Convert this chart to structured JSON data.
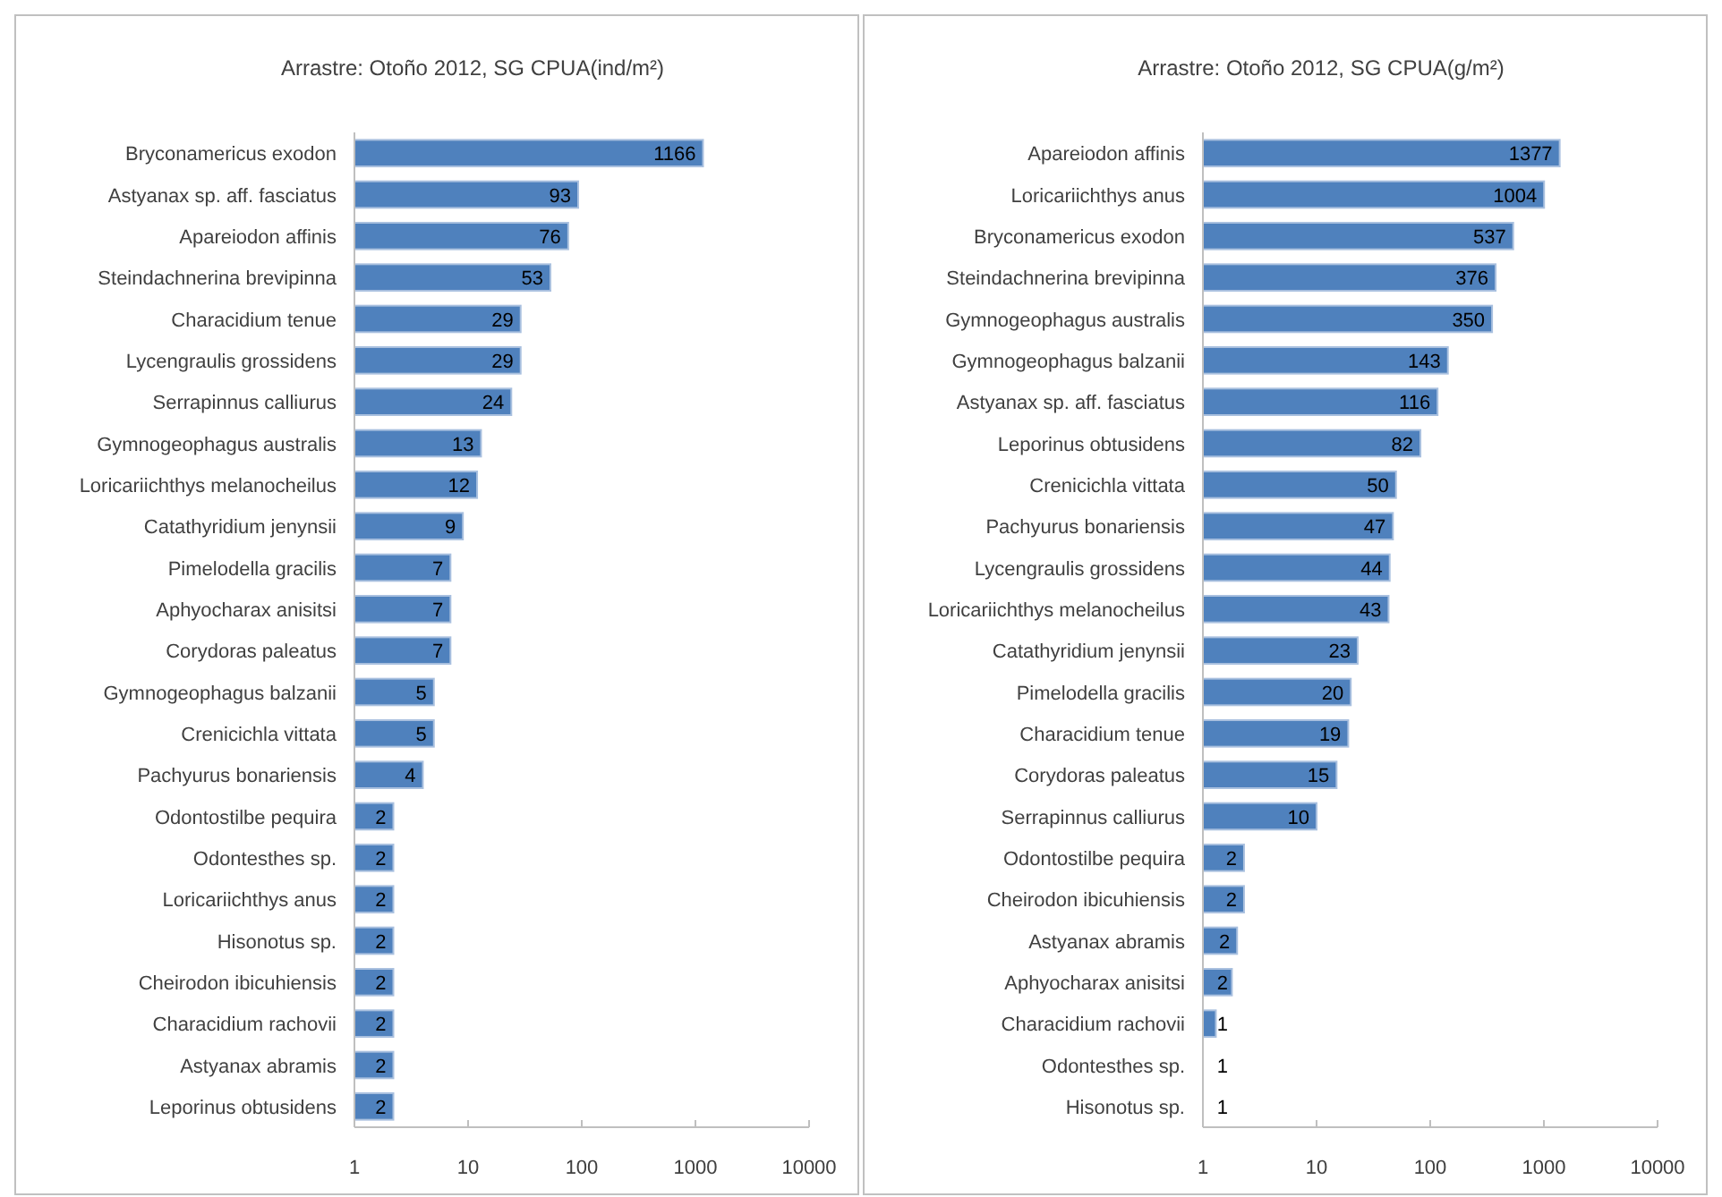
{
  "chart_data": [
    {
      "type": "bar",
      "orientation": "horizontal",
      "log": "x",
      "title": "Arrastre:  Otoño 2012, SG    CPUA(ind/m²)",
      "color": "#4f81bd",
      "xlim": [
        1,
        10000
      ],
      "xticks": [
        1,
        10,
        100,
        1000,
        10000
      ],
      "categories": [
        "Bryconamericus exodon",
        "Astyanax sp. aff.  fasciatus",
        "Apareiodon affinis",
        "Steindachnerina brevipinna",
        "Characidium tenue",
        "Lycengraulis grossidens",
        "Serrapinnus calliurus",
        "Gymnogeophagus australis",
        "Loricariichthys melanocheilus",
        "Catathyridium jenynsii",
        "Pimelodella gracilis",
        "Aphyocharax anisitsi",
        "Corydoras paleatus",
        "Gymnogeophagus balzanii",
        "Crenicichla vittata",
        "Pachyurus bonariensis",
        "Odontostilbe pequira",
        "Odontesthes sp.",
        "Loricariichthys anus",
        "Hisonotus sp.",
        "Cheirodon ibicuhiensis",
        "Characidium rachovii",
        "Astyanax abramis",
        "Leporinus obtusidens"
      ],
      "values": [
        1166,
        93,
        76,
        53,
        29,
        29,
        24,
        13,
        12,
        9,
        7,
        7,
        7,
        5,
        5,
        4,
        2.2,
        2.2,
        2.2,
        2.2,
        2.2,
        2.2,
        2.2,
        2.2
      ],
      "value_labels": [
        "1166",
        "93",
        "76",
        "53",
        "29",
        "29",
        "24",
        "13",
        "12",
        "9",
        "7",
        "7",
        "7",
        "5",
        "5",
        "4",
        "2",
        "2",
        "2",
        "2",
        "2",
        "2",
        "2",
        "2"
      ]
    },
    {
      "type": "bar",
      "orientation": "horizontal",
      "log": "x",
      "title": "Arrastre:  Otoño 2012, SG    CPUA(g/m²)",
      "color": "#4f81bd",
      "xlim": [
        1,
        10000
      ],
      "xticks": [
        1,
        10,
        100,
        1000,
        10000
      ],
      "categories": [
        "Apareiodon affinis",
        "Loricariichthys anus",
        "Bryconamericus exodon",
        "Steindachnerina brevipinna",
        "Gymnogeophagus australis",
        "Gymnogeophagus balzanii",
        "Astyanax sp. aff.  fasciatus",
        "Leporinus obtusidens",
        "Crenicichla vittata",
        "Pachyurus bonariensis",
        "Lycengraulis grossidens",
        "Loricariichthys melanocheilus",
        "Catathyridium jenynsii",
        "Pimelodella gracilis",
        "Characidium tenue",
        "Corydoras paleatus",
        "Serrapinnus calliurus",
        "Odontostilbe pequira",
        "Cheirodon ibicuhiensis",
        "Astyanax abramis",
        "Aphyocharax anisitsi",
        "Characidium rachovii",
        "Odontesthes sp.",
        "Hisonotus sp."
      ],
      "values": [
        1377,
        1004,
        537,
        376,
        350,
        143,
        116,
        82,
        50,
        47,
        44,
        43,
        23,
        20,
        19,
        15,
        10,
        2.3,
        2.3,
        2,
        1.8,
        1.3,
        1,
        1
      ],
      "value_labels": [
        "1377",
        "1004",
        "537",
        "376",
        "350",
        "143",
        "116",
        "82",
        "50",
        "47",
        "44",
        "43",
        "23",
        "20",
        "19",
        "15",
        "10",
        "2",
        "2",
        "2",
        "2",
        "1",
        "1",
        "1"
      ]
    }
  ]
}
